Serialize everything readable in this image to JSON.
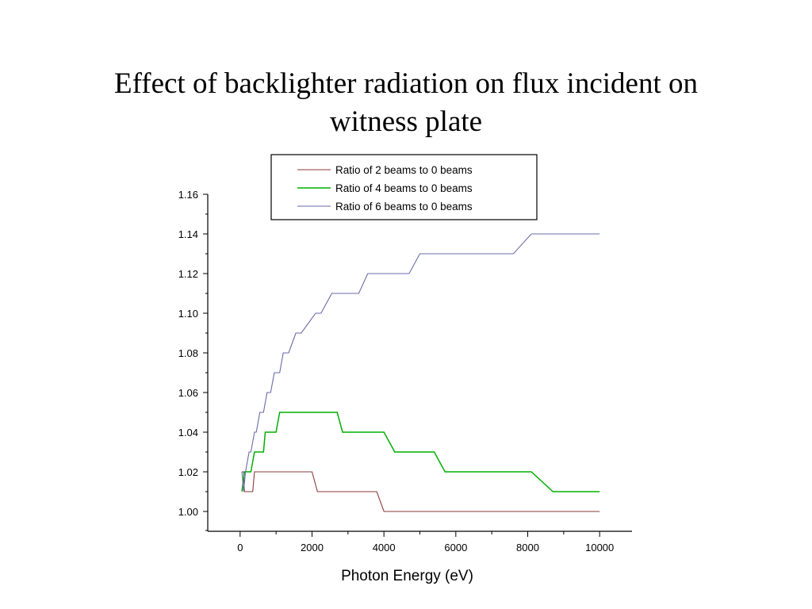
{
  "slide": {
    "title_line1": "Effect of backlighter radiation on flux incident on",
    "title_line2": "witness plate"
  },
  "chart_data": {
    "type": "line",
    "title": "",
    "xlabel": "Photon Energy (eV)",
    "ylabel": "",
    "xlim": [
      -900,
      10900
    ],
    "ylim": [
      0.99,
      1.16
    ],
    "xticks": [
      "0",
      "2000",
      "4000",
      "6000",
      "8000",
      "10000"
    ],
    "yticks": [
      "1.00",
      "1.02",
      "1.04",
      "1.06",
      "1.08",
      "1.10",
      "1.12",
      "1.14",
      "1.16"
    ],
    "grid": false,
    "legend_position": "top",
    "series": [
      {
        "name": "Ratio of 2 beams to 0 beams",
        "color": "#8b3a3a",
        "x": [
          50,
          100,
          120,
          350,
          400,
          2000,
          2150,
          3800,
          4000,
          10000
        ],
        "y": [
          1.02,
          1.02,
          1.01,
          1.01,
          1.02,
          1.02,
          1.01,
          1.01,
          1.0,
          1.0
        ]
      },
      {
        "name": "Ratio of 4 beams to 0 beams",
        "color": "#00b000",
        "x": [
          50,
          120,
          300,
          400,
          650,
          700,
          1000,
          1100,
          2700,
          2850,
          4000,
          4300,
          5400,
          5700,
          8100,
          8700,
          10000
        ],
        "y": [
          1.01,
          1.02,
          1.02,
          1.03,
          1.03,
          1.04,
          1.04,
          1.05,
          1.05,
          1.04,
          1.04,
          1.03,
          1.03,
          1.02,
          1.02,
          1.01,
          1.01
        ]
      },
      {
        "name": "Ratio of 6 beams to 0 beams",
        "color": "#6a6aa8",
        "x": [
          50,
          100,
          150,
          250,
          300,
          400,
          450,
          550,
          650,
          750,
          850,
          950,
          1100,
          1200,
          1350,
          1550,
          1700,
          2100,
          2250,
          2550,
          2700,
          3300,
          3550,
          4700,
          5000,
          7600,
          8100,
          10000
        ],
        "y": [
          1.02,
          1.01,
          1.02,
          1.03,
          1.03,
          1.04,
          1.04,
          1.05,
          1.05,
          1.06,
          1.06,
          1.07,
          1.07,
          1.08,
          1.08,
          1.09,
          1.09,
          1.1,
          1.1,
          1.11,
          1.11,
          1.11,
          1.12,
          1.12,
          1.13,
          1.13,
          1.14,
          1.14
        ]
      }
    ]
  }
}
